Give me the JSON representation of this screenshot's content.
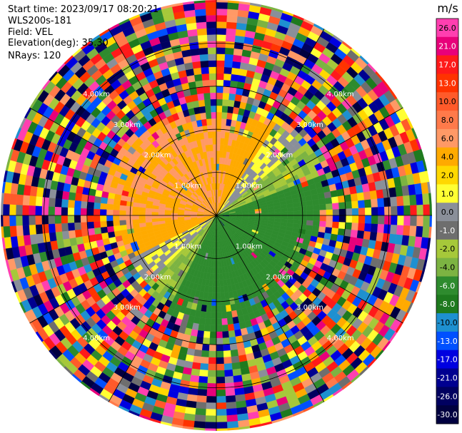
{
  "header": {
    "start_time": "Start time: 2023/09/17 08:20:21",
    "site": "WLS200s-181",
    "field": "Field: VEL",
    "elevation": "Elevation(deg): 35.30",
    "nrays": "NRays: 120"
  },
  "chart_data": {
    "type": "heatmap",
    "projection": "polar-ppi",
    "field": "VEL",
    "nrays": 120,
    "range_rings_km": [
      1.0,
      2.0,
      3.0,
      4.0
    ],
    "max_range_km": 5.0,
    "ring_labels": [
      "1.00km",
      "2.00km",
      "3.00km",
      "4.00km"
    ],
    "colorbar": {
      "unit": "m/s",
      "ticks": [
        "26.0",
        "21.0",
        "17.0",
        "13.0",
        "10.0",
        "8.0",
        "6.0",
        "4.0",
        "2.0",
        "1.0",
        "0.0",
        "-1.0",
        "-2.0",
        "-4.0",
        "-6.0",
        "-8.0",
        "-10.0",
        "-13.0",
        "-17.0",
        "-21.0",
        "-26.0",
        "-30.0"
      ],
      "colors": [
        "#ff3fb0",
        "#e8007a",
        "#ff1a1a",
        "#ff3300",
        "#ff5a2a",
        "#ff7a4a",
        "#ff9966",
        "#ffaa00",
        "#ffd800",
        "#ffff33",
        "#8a8f99",
        "#6e6e6e",
        "#a6c83a",
        "#7cb342",
        "#2e8b2e",
        "#1e7a1e",
        "#1e90d0",
        "#0050ff",
        "#0000e0",
        "#000090",
        "#000060",
        "#000040"
      ]
    }
  }
}
